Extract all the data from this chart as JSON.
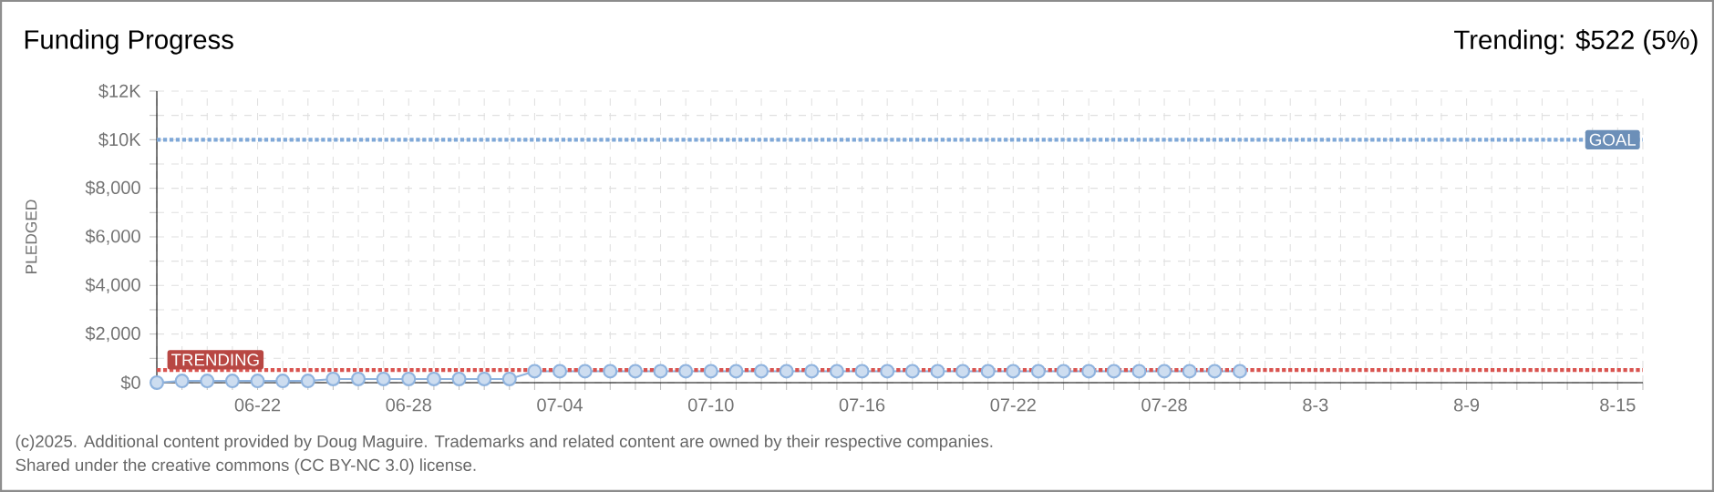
{
  "chart_data": {
    "type": "line",
    "title": "Funding Progress",
    "ylabel": "PLEDGED",
    "annotations": [
      "Trending: $522 (5%)",
      "(c)2025. Additional content provided by Doug Maguire. Trademarks and related content are owned by their respective companies.",
      "Shared under the creative commons (CC BY-NC 3.0) license."
    ],
    "x": [
      "2025-06-18",
      "2025-06-19",
      "2025-06-20",
      "2025-06-21",
      "2025-06-22",
      "2025-06-23",
      "2025-06-24",
      "2025-06-25",
      "2025-06-26",
      "2025-06-27",
      "2025-06-28",
      "2025-06-29",
      "2025-06-30",
      "2025-07-01",
      "2025-07-02",
      "2025-07-03",
      "2025-07-04",
      "2025-07-05",
      "2025-07-06",
      "2025-07-07",
      "2025-07-08",
      "2025-07-09",
      "2025-07-10",
      "2025-07-11",
      "2025-07-12",
      "2025-07-13",
      "2025-07-14",
      "2025-07-15",
      "2025-07-16",
      "2025-07-17",
      "2025-07-18",
      "2025-07-19",
      "2025-07-20",
      "2025-07-21",
      "2025-07-22",
      "2025-07-23",
      "2025-07-24",
      "2025-07-25",
      "2025-07-26",
      "2025-07-27",
      "2025-07-28",
      "2025-07-29",
      "2025-07-30",
      "2025-07-31"
    ],
    "series": [
      {
        "color": "#8fb3de",
        "values": [
          0,
          70,
          70,
          70,
          70,
          70,
          70,
          150,
          150,
          150,
          150,
          150,
          150,
          150,
          150,
          470,
          470,
          470,
          470,
          470,
          470,
          470,
          470,
          470,
          470,
          470,
          470,
          470,
          470,
          470,
          470,
          470,
          470,
          470,
          470,
          470,
          470,
          470,
          470,
          470,
          470,
          470,
          470,
          470
        ]
      }
    ],
    "marker": "circle",
    "xlim": [
      "2025-06-18",
      "2025-08-16"
    ],
    "xticks": [
      {
        "value": "2025-06-18",
        "label": null
      },
      {
        "value": "2025-06-19",
        "label": null
      },
      {
        "value": "2025-06-20",
        "label": null
      },
      {
        "value": "2025-06-21",
        "label": null
      },
      {
        "value": "2025-06-22",
        "label": "06-22"
      },
      {
        "value": "2025-06-23",
        "label": null
      },
      {
        "value": "2025-06-24",
        "label": null
      },
      {
        "value": "2025-06-25",
        "label": null
      },
      {
        "value": "2025-06-26",
        "label": null
      },
      {
        "value": "2025-06-27",
        "label": null
      },
      {
        "value": "2025-06-28",
        "label": "06-28"
      },
      {
        "value": "2025-06-29",
        "label": null
      },
      {
        "value": "2025-06-30",
        "label": null
      },
      {
        "value": "2025-07-01",
        "label": null
      },
      {
        "value": "2025-07-02",
        "label": null
      },
      {
        "value": "2025-07-03",
        "label": null
      },
      {
        "value": "2025-07-04",
        "label": "07-04"
      },
      {
        "value": "2025-07-05",
        "label": null
      },
      {
        "value": "2025-07-06",
        "label": null
      },
      {
        "value": "2025-07-07",
        "label": null
      },
      {
        "value": "2025-07-08",
        "label": null
      },
      {
        "value": "2025-07-09",
        "label": null
      },
      {
        "value": "2025-07-10",
        "label": "07-10"
      },
      {
        "value": "2025-07-11",
        "label": null
      },
      {
        "value": "2025-07-12",
        "label": null
      },
      {
        "value": "2025-07-13",
        "label": null
      },
      {
        "value": "2025-07-14",
        "label": null
      },
      {
        "value": "2025-07-15",
        "label": null
      },
      {
        "value": "2025-07-16",
        "label": "07-16"
      },
      {
        "value": "2025-07-17",
        "label": null
      },
      {
        "value": "2025-07-18",
        "label": null
      },
      {
        "value": "2025-07-19",
        "label": null
      },
      {
        "value": "2025-07-20",
        "label": null
      },
      {
        "value": "2025-07-21",
        "label": null
      },
      {
        "value": "2025-07-22",
        "label": "07-22"
      },
      {
        "value": "2025-07-23",
        "label": null
      },
      {
        "value": "2025-07-24",
        "label": null
      },
      {
        "value": "2025-07-25",
        "label": null
      },
      {
        "value": "2025-07-26",
        "label": null
      },
      {
        "value": "2025-07-27",
        "label": null
      },
      {
        "value": "2025-07-28",
        "label": "07-28"
      },
      {
        "value": "2025-07-29",
        "label": null
      },
      {
        "value": "2025-07-30",
        "label": null
      },
      {
        "value": "2025-07-31",
        "label": null
      },
      {
        "value": "2025-08-01",
        "label": null
      },
      {
        "value": "2025-08-02",
        "label": null
      },
      {
        "value": "2025-08-03",
        "label": "8-3"
      },
      {
        "value": "2025-08-04",
        "label": null
      },
      {
        "value": "2025-08-05",
        "label": null
      },
      {
        "value": "2025-08-06",
        "label": null
      },
      {
        "value": "2025-08-07",
        "label": null
      },
      {
        "value": "2025-08-08",
        "label": null
      },
      {
        "value": "2025-08-09",
        "label": "8-9"
      },
      {
        "value": "2025-08-10",
        "label": null
      },
      {
        "value": "2025-08-11",
        "label": null
      },
      {
        "value": "2025-08-12",
        "label": null
      },
      {
        "value": "2025-08-13",
        "label": null
      },
      {
        "value": "2025-08-14",
        "label": null
      },
      {
        "value": "2025-08-15",
        "label": "8-15"
      },
      {
        "value": "2025-08-16",
        "label": null
      }
    ],
    "ylim": [
      0,
      12000
    ],
    "yticks": [
      {
        "value": 0,
        "label": "$0"
      },
      {
        "value": 1000,
        "label": null
      },
      {
        "value": 2000,
        "label": "$2,000"
      },
      {
        "value": 3000,
        "label": null
      },
      {
        "value": 4000,
        "label": "$4,000"
      },
      {
        "value": 5000,
        "label": null
      },
      {
        "value": 6000,
        "label": "$6,000"
      },
      {
        "value": 7000,
        "label": null
      },
      {
        "value": 8000,
        "label": "$8,000"
      },
      {
        "value": 9000,
        "label": null
      },
      {
        "value": 10000,
        "label": "$10K"
      },
      {
        "value": 11000,
        "label": null
      },
      {
        "value": 12000,
        "label": "$12K"
      }
    ],
    "grid": true,
    "ref_lines": [
      {
        "axis": "y",
        "value": 10000,
        "label": "GOAL",
        "color": "#7fa8d8",
        "line_style": "dotted"
      },
      {
        "axis": "y",
        "value": 522,
        "label": "TRENDING",
        "color": "#d9534f",
        "line_style": "dotted"
      }
    ]
  }
}
